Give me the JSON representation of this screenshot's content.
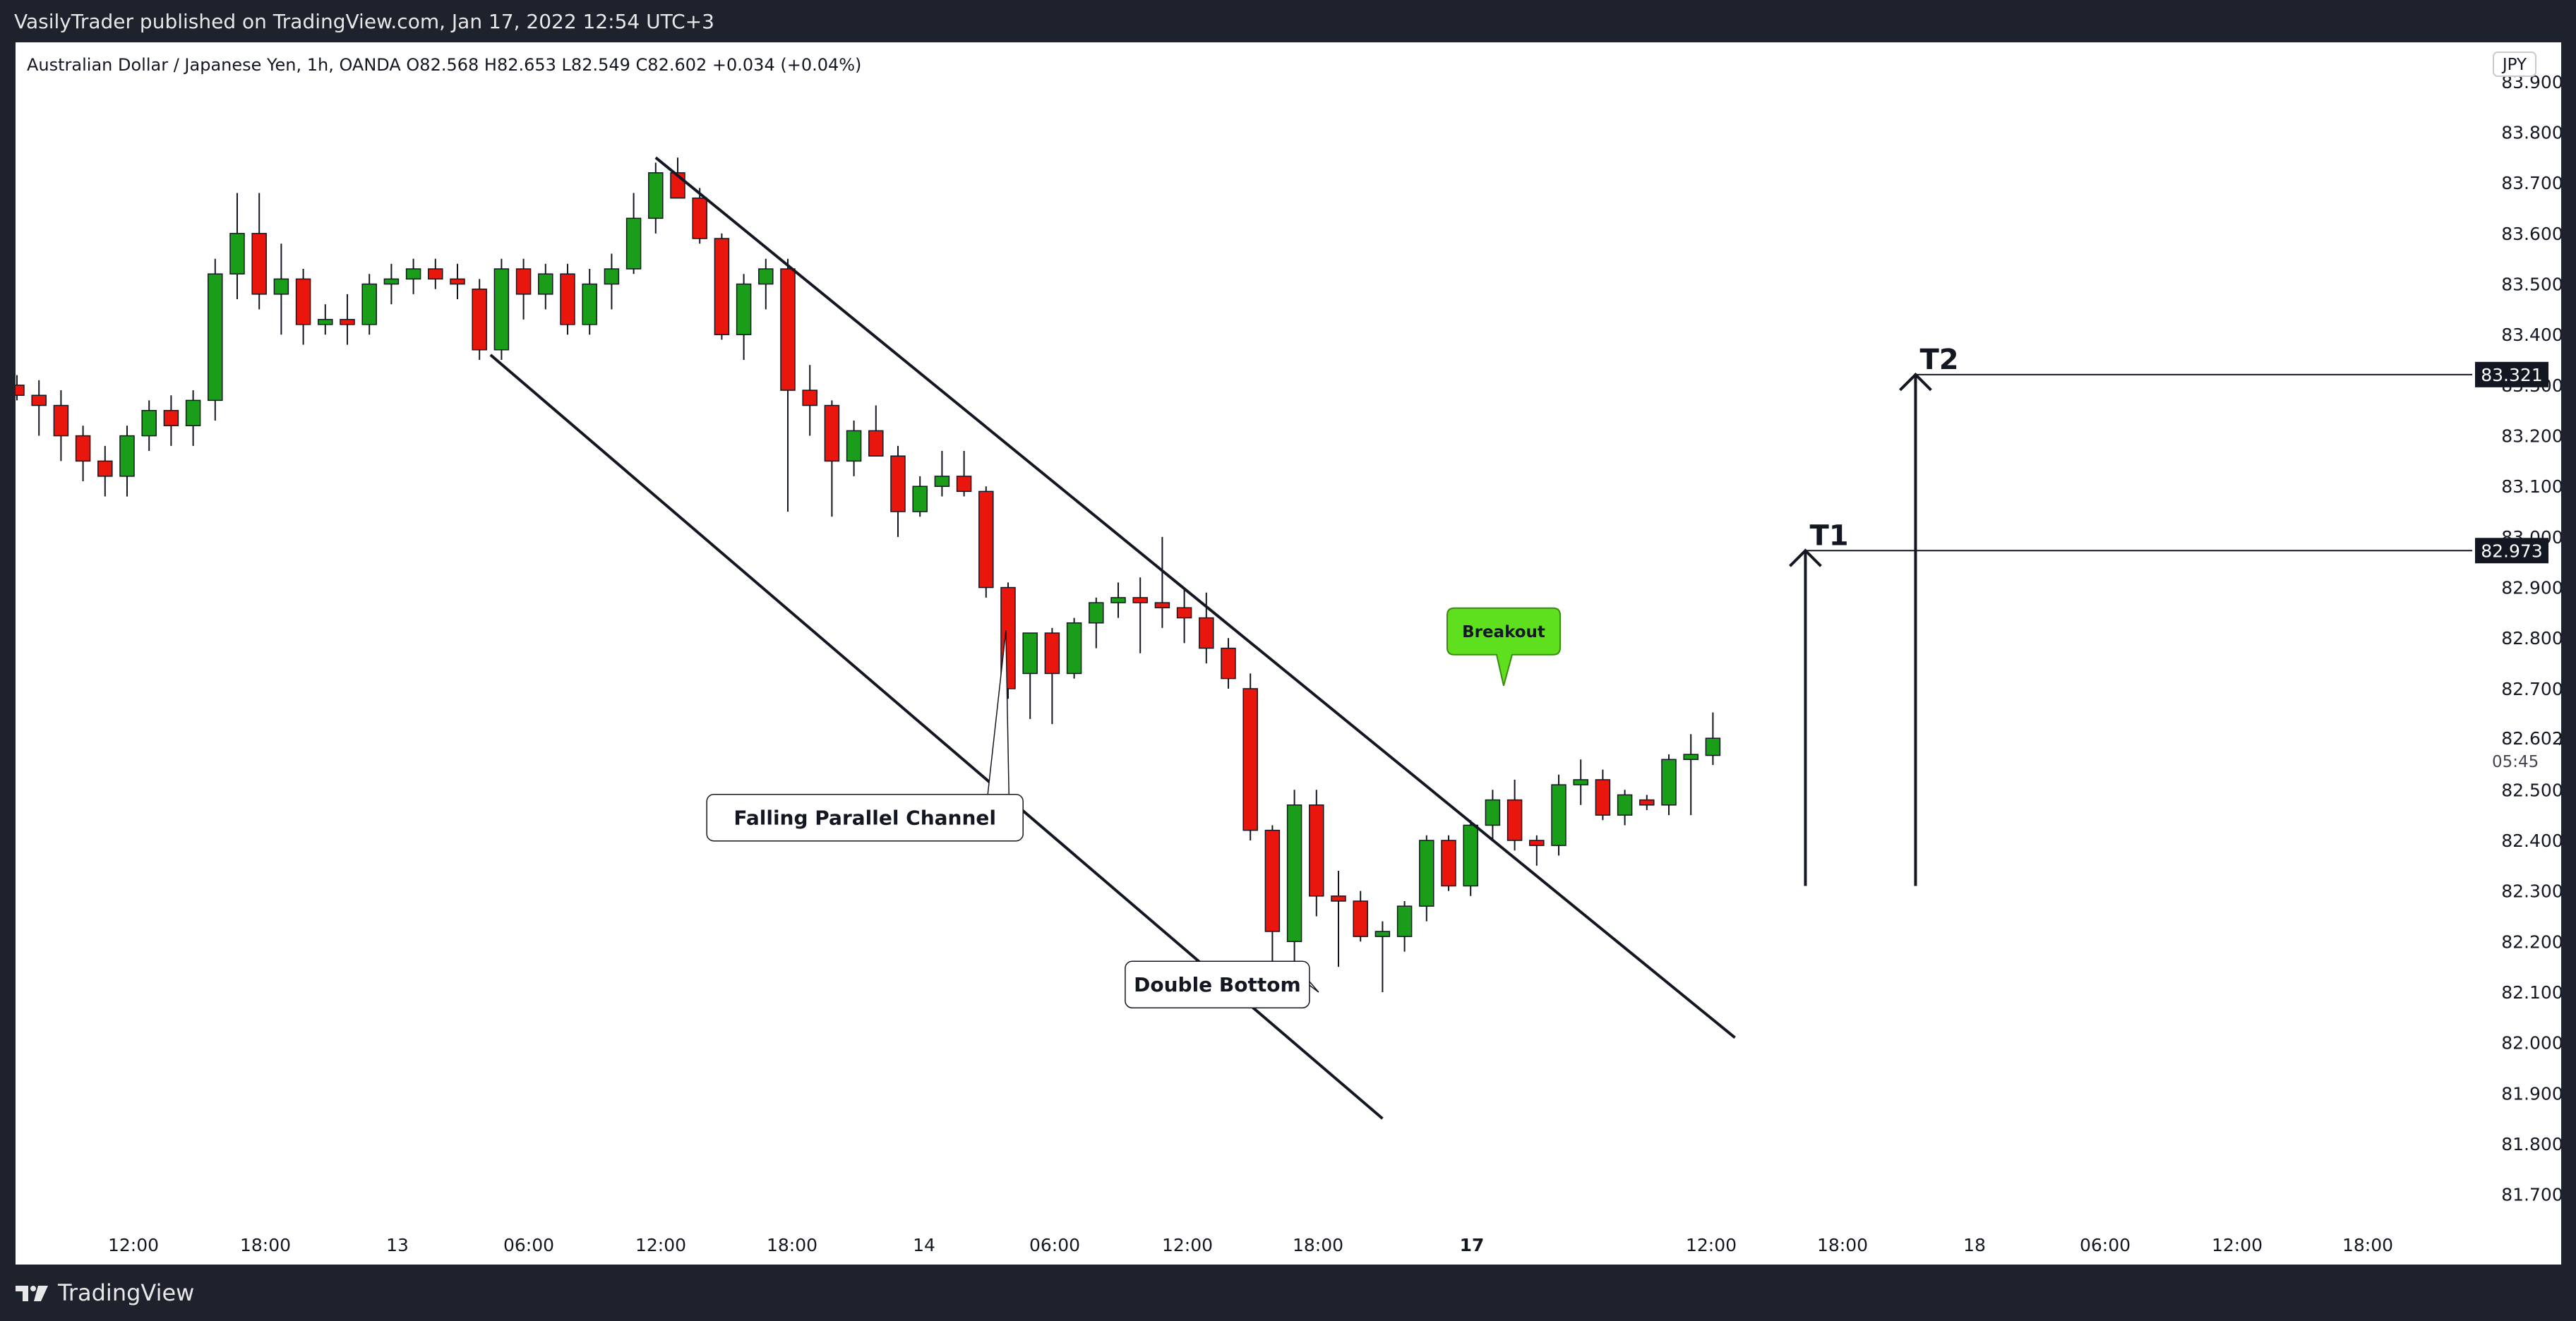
{
  "header": {
    "published": "VasilyTrader published on TradingView.com, Jan 17, 2022 12:54 UTC+3"
  },
  "footer": {
    "brand": "TradingView"
  },
  "chart_data": {
    "type": "candlestick",
    "symbol_line": "Australian Dollar / Japanese Yen, 1h, OANDA  O82.568  H82.653  L82.549  C82.602  +0.034 (+0.04%)",
    "currency": "JPY",
    "ylim": [
      81.62,
      83.95
    ],
    "y_ticks": [
      81.7,
      81.8,
      81.9,
      82.0,
      82.1,
      82.2,
      82.3,
      82.4,
      82.5,
      82.6,
      82.7,
      82.8,
      82.9,
      83.0,
      83.1,
      83.2,
      83.3,
      83.4,
      83.5,
      83.6,
      83.7,
      83.8,
      83.9
    ],
    "x_ticks": [
      "12:00",
      "18:00",
      "13",
      "06:00",
      "12:00",
      "18:00",
      "14",
      "06:00",
      "12:00",
      "18:00",
      "17",
      "12:00",
      "18:00",
      "18",
      "06:00",
      "12:00",
      "18:00"
    ],
    "candles": [
      {
        "o": 83.3,
        "h": 83.32,
        "l": 83.27,
        "c": 83.28
      },
      {
        "o": 83.28,
        "h": 83.31,
        "l": 83.2,
        "c": 83.26
      },
      {
        "o": 83.26,
        "h": 83.29,
        "l": 83.15,
        "c": 83.2
      },
      {
        "o": 83.2,
        "h": 83.22,
        "l": 83.11,
        "c": 83.15
      },
      {
        "o": 83.15,
        "h": 83.18,
        "l": 83.08,
        "c": 83.12
      },
      {
        "o": 83.12,
        "h": 83.22,
        "l": 83.08,
        "c": 83.2
      },
      {
        "o": 83.2,
        "h": 83.27,
        "l": 83.17,
        "c": 83.25
      },
      {
        "o": 83.25,
        "h": 83.28,
        "l": 83.18,
        "c": 83.22
      },
      {
        "o": 83.22,
        "h": 83.29,
        "l": 83.18,
        "c": 83.27
      },
      {
        "o": 83.27,
        "h": 83.55,
        "l": 83.23,
        "c": 83.52
      },
      {
        "o": 83.52,
        "h": 83.68,
        "l": 83.47,
        "c": 83.6
      },
      {
        "o": 83.6,
        "h": 83.68,
        "l": 83.45,
        "c": 83.48
      },
      {
        "o": 83.48,
        "h": 83.58,
        "l": 83.4,
        "c": 83.51
      },
      {
        "o": 83.51,
        "h": 83.53,
        "l": 83.38,
        "c": 83.42
      },
      {
        "o": 83.42,
        "h": 83.46,
        "l": 83.4,
        "c": 83.43
      },
      {
        "o": 83.43,
        "h": 83.48,
        "l": 83.38,
        "c": 83.42
      },
      {
        "o": 83.42,
        "h": 83.52,
        "l": 83.4,
        "c": 83.5
      },
      {
        "o": 83.5,
        "h": 83.54,
        "l": 83.46,
        "c": 83.51
      },
      {
        "o": 83.51,
        "h": 83.55,
        "l": 83.48,
        "c": 83.53
      },
      {
        "o": 83.53,
        "h": 83.55,
        "l": 83.49,
        "c": 83.51
      },
      {
        "o": 83.51,
        "h": 83.54,
        "l": 83.47,
        "c": 83.5
      },
      {
        "o": 83.49,
        "h": 83.51,
        "l": 83.35,
        "c": 83.37
      },
      {
        "o": 83.37,
        "h": 83.55,
        "l": 83.35,
        "c": 83.53
      },
      {
        "o": 83.53,
        "h": 83.55,
        "l": 83.43,
        "c": 83.48
      },
      {
        "o": 83.48,
        "h": 83.54,
        "l": 83.45,
        "c": 83.52
      },
      {
        "o": 83.52,
        "h": 83.54,
        "l": 83.4,
        "c": 83.42
      },
      {
        "o": 83.42,
        "h": 83.53,
        "l": 83.4,
        "c": 83.5
      },
      {
        "o": 83.5,
        "h": 83.56,
        "l": 83.45,
        "c": 83.53
      },
      {
        "o": 83.53,
        "h": 83.68,
        "l": 83.52,
        "c": 83.63
      },
      {
        "o": 83.63,
        "h": 83.74,
        "l": 83.6,
        "c": 83.72
      },
      {
        "o": 83.72,
        "h": 83.75,
        "l": 83.67,
        "c": 83.67
      },
      {
        "o": 83.67,
        "h": 83.69,
        "l": 83.58,
        "c": 83.59
      },
      {
        "o": 83.59,
        "h": 83.6,
        "l": 83.39,
        "c": 83.4
      },
      {
        "o": 83.4,
        "h": 83.52,
        "l": 83.35,
        "c": 83.5
      },
      {
        "o": 83.5,
        "h": 83.55,
        "l": 83.45,
        "c": 83.53
      },
      {
        "o": 83.53,
        "h": 83.55,
        "l": 83.05,
        "c": 83.29
      },
      {
        "o": 83.29,
        "h": 83.34,
        "l": 83.2,
        "c": 83.26
      },
      {
        "o": 83.26,
        "h": 83.27,
        "l": 83.04,
        "c": 83.15
      },
      {
        "o": 83.15,
        "h": 83.23,
        "l": 83.12,
        "c": 83.21
      },
      {
        "o": 83.21,
        "h": 83.26,
        "l": 83.16,
        "c": 83.16
      },
      {
        "o": 83.16,
        "h": 83.18,
        "l": 83.0,
        "c": 83.05
      },
      {
        "o": 83.05,
        "h": 83.12,
        "l": 83.04,
        "c": 83.1
      },
      {
        "o": 83.1,
        "h": 83.17,
        "l": 83.08,
        "c": 83.12
      },
      {
        "o": 83.12,
        "h": 83.17,
        "l": 83.08,
        "c": 83.09
      },
      {
        "o": 83.09,
        "h": 83.1,
        "l": 82.88,
        "c": 82.9
      },
      {
        "o": 82.9,
        "h": 82.91,
        "l": 82.68,
        "c": 82.7
      },
      {
        "o": 82.73,
        "h": 82.81,
        "l": 82.64,
        "c": 82.81
      },
      {
        "o": 82.81,
        "h": 82.82,
        "l": 82.63,
        "c": 82.73
      },
      {
        "o": 82.73,
        "h": 82.84,
        "l": 82.72,
        "c": 82.83
      },
      {
        "o": 82.83,
        "h": 82.88,
        "l": 82.78,
        "c": 82.87
      },
      {
        "o": 82.87,
        "h": 82.91,
        "l": 82.84,
        "c": 82.88
      },
      {
        "o": 82.88,
        "h": 82.92,
        "l": 82.77,
        "c": 82.87
      },
      {
        "o": 82.87,
        "h": 83.0,
        "l": 82.82,
        "c": 82.86
      },
      {
        "o": 82.86,
        "h": 82.9,
        "l": 82.79,
        "c": 82.84
      },
      {
        "o": 82.84,
        "h": 82.89,
        "l": 82.75,
        "c": 82.78
      },
      {
        "o": 82.78,
        "h": 82.8,
        "l": 82.7,
        "c": 82.72
      },
      {
        "o": 82.7,
        "h": 82.73,
        "l": 82.4,
        "c": 82.42
      },
      {
        "o": 82.42,
        "h": 82.43,
        "l": 82.1,
        "c": 82.22
      },
      {
        "o": 82.2,
        "h": 82.5,
        "l": 82.15,
        "c": 82.47
      },
      {
        "o": 82.47,
        "h": 82.5,
        "l": 82.25,
        "c": 82.29
      },
      {
        "o": 82.29,
        "h": 82.34,
        "l": 82.15,
        "c": 82.28
      },
      {
        "o": 82.28,
        "h": 82.3,
        "l": 82.2,
        "c": 82.21
      },
      {
        "o": 82.21,
        "h": 82.24,
        "l": 82.1,
        "c": 82.22
      },
      {
        "o": 82.21,
        "h": 82.28,
        "l": 82.18,
        "c": 82.27
      },
      {
        "o": 82.27,
        "h": 82.41,
        "l": 82.24,
        "c": 82.4
      },
      {
        "o": 82.4,
        "h": 82.41,
        "l": 82.3,
        "c": 82.31
      },
      {
        "o": 82.31,
        "h": 82.44,
        "l": 82.29,
        "c": 82.43
      },
      {
        "o": 82.43,
        "h": 82.5,
        "l": 82.4,
        "c": 82.48
      },
      {
        "o": 82.48,
        "h": 82.52,
        "l": 82.38,
        "c": 82.4
      },
      {
        "o": 82.4,
        "h": 82.41,
        "l": 82.35,
        "c": 82.39
      },
      {
        "o": 82.39,
        "h": 82.53,
        "l": 82.37,
        "c": 82.51
      },
      {
        "o": 82.51,
        "h": 82.56,
        "l": 82.47,
        "c": 82.52
      },
      {
        "o": 82.52,
        "h": 82.54,
        "l": 82.44,
        "c": 82.45
      },
      {
        "o": 82.45,
        "h": 82.5,
        "l": 82.43,
        "c": 82.49
      },
      {
        "o": 82.48,
        "h": 82.49,
        "l": 82.46,
        "c": 82.47
      },
      {
        "o": 82.47,
        "h": 82.57,
        "l": 82.45,
        "c": 82.56
      },
      {
        "o": 82.56,
        "h": 82.61,
        "l": 82.45,
        "c": 82.57
      },
      {
        "o": 82.568,
        "h": 82.653,
        "l": 82.549,
        "c": 82.602
      }
    ],
    "channel_upper": [
      [
        29,
        83.75
      ],
      [
        78,
        82.01
      ]
    ],
    "channel_lower": [
      [
        21.5,
        83.36
      ],
      [
        62,
        81.85
      ]
    ],
    "price_labels": [
      {
        "name": "current",
        "value": 82.602,
        "text": "82.602",
        "countdown": "05:45"
      },
      {
        "name": "t2",
        "value": 83.321,
        "text": "83.321"
      },
      {
        "name": "t1",
        "value": 82.973,
        "text": "82.973"
      }
    ],
    "targets": [
      {
        "label": "T1",
        "x": 81.2,
        "price": 82.973,
        "from": 82.31
      },
      {
        "label": "T2",
        "x": 86.2,
        "price": 83.321,
        "from": 82.31
      }
    ],
    "annotations": [
      {
        "text": "Falling Parallel Channel",
        "x": 38.5,
        "price": 82.445
      },
      {
        "text": "Double Bottom",
        "x": 54.5,
        "price": 82.115
      },
      {
        "text": "Breakout",
        "x": 67.5,
        "price": 82.65
      }
    ]
  },
  "colors": {
    "up": "#1a9e1a",
    "down": "#e8160c",
    "breakout": "#5ee01f",
    "text": "#131722",
    "dark": "#1e222d"
  }
}
